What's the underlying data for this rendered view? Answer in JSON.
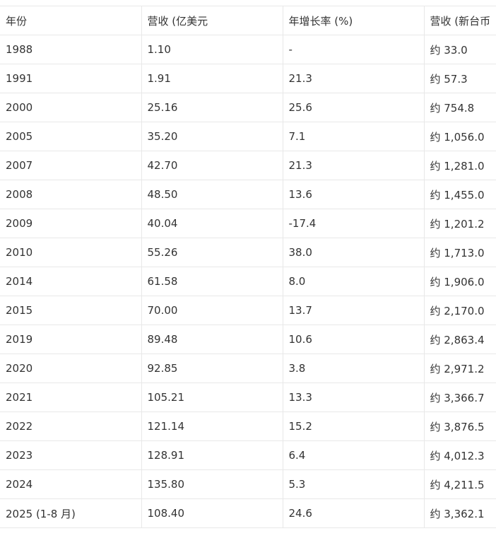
{
  "table": {
    "headers": [
      "年份",
      "营收 (亿美元",
      "年增长率 (%)",
      "营收 (新台币"
    ],
    "rows": [
      [
        "1988",
        "1.10",
        "-",
        "约 33.0"
      ],
      [
        "1991",
        "1.91",
        "21.3",
        "约 57.3"
      ],
      [
        "2000",
        "25.16",
        "25.6",
        "约 754.8"
      ],
      [
        "2005",
        "35.20",
        "7.1",
        "约 1,056.0"
      ],
      [
        "2007",
        "42.70",
        "21.3",
        "约 1,281.0"
      ],
      [
        "2008",
        "48.50",
        "13.6",
        "约 1,455.0"
      ],
      [
        "2009",
        "40.04",
        "-17.4",
        "约 1,201.2"
      ],
      [
        "2010",
        "55.26",
        "38.0",
        "约 1,713.0"
      ],
      [
        "2014",
        "61.58",
        "8.0",
        "约 1,906.0"
      ],
      [
        "2015",
        "70.00",
        "13.7",
        "约 2,170.0"
      ],
      [
        "2019",
        "89.48",
        "10.6",
        "约 2,863.4"
      ],
      [
        "2020",
        "92.85",
        "3.8",
        "约 2,971.2"
      ],
      [
        "2021",
        "105.21",
        "13.3",
        "约 3,366.7"
      ],
      [
        "2022",
        "121.14",
        "15.2",
        "约 3,876.5"
      ],
      [
        "2023",
        "128.91",
        "6.4",
        "约 4,012.3"
      ],
      [
        "2024",
        "135.80",
        "5.3",
        "约 4,211.5"
      ],
      [
        "2025 (1-8 月)",
        "108.40",
        "24.6",
        "约 3,362.1"
      ]
    ]
  }
}
